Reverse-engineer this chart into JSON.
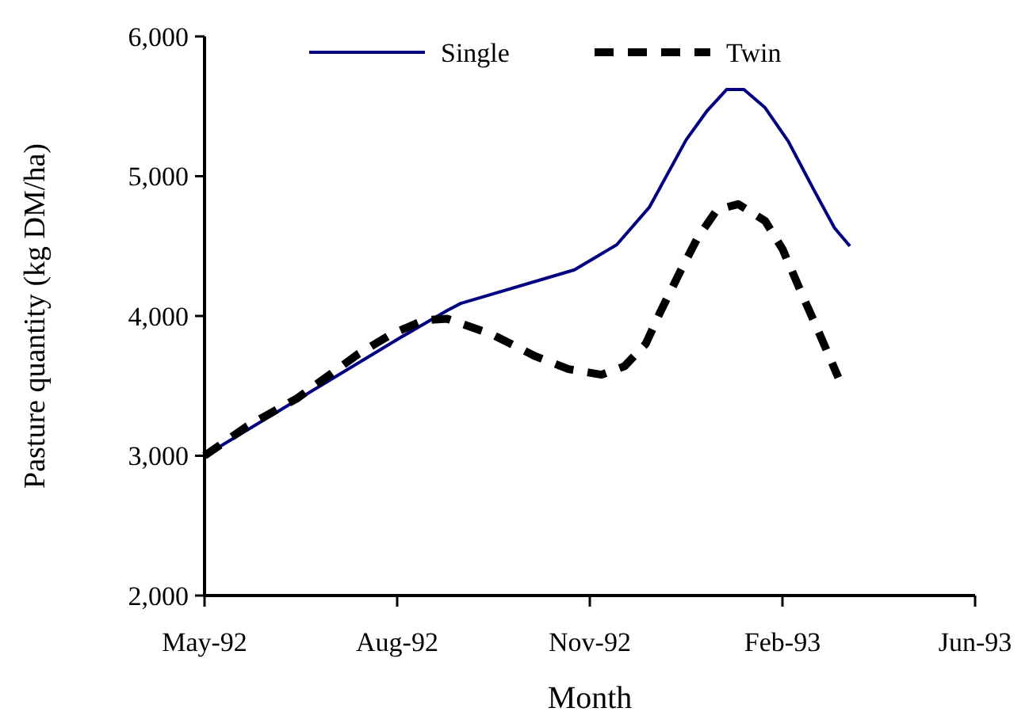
{
  "chart_data": {
    "type": "line",
    "xlabel": "Month",
    "ylabel": "Pasture quantity (kg DM/ha)",
    "xlim": [
      "1992-05-01",
      "1993-06-05"
    ],
    "xticks": [
      {
        "value": "1992-05-01",
        "label": "May-92"
      },
      {
        "value": "1992-08-09",
        "label": "Aug-92"
      },
      {
        "value": "1992-11-17",
        "label": "Nov-92"
      },
      {
        "value": "1993-02-25",
        "label": "Feb-93"
      },
      {
        "value": "1993-06-05",
        "label": "Jun-93"
      }
    ],
    "ylim": [
      2000,
      6000
    ],
    "yticks": [
      {
        "value": 2000,
        "label": "2,000"
      },
      {
        "value": 3000,
        "label": "3,000"
      },
      {
        "value": 4000,
        "label": "4,000"
      },
      {
        "value": 5000,
        "label": "5,000"
      },
      {
        "value": 6000,
        "label": "6,000"
      }
    ],
    "legend": "top",
    "grid": false,
    "marker": "none",
    "series": [
      {
        "name": "Single",
        "color": "#000080",
        "line_style": "solid",
        "x": [
          "1992-05-01",
          "1992-08-10",
          "1992-09-04",
          "1992-09-11",
          "1992-11-09",
          "1992-12-01",
          "1992-12-18",
          "1993-01-06",
          "1993-01-17",
          "1993-01-27",
          "1993-02-05",
          "1993-02-16",
          "1993-02-28",
          "1993-03-13",
          "1993-03-24",
          "1993-04-01"
        ],
        "values": [
          3000,
          3840,
          4040,
          4090,
          4330,
          4510,
          4780,
          5260,
          5470,
          5620,
          5620,
          5490,
          5250,
          4910,
          4630,
          4500
        ]
      },
      {
        "name": "Twin",
        "color": "#000000",
        "line_style": "dashed",
        "x": [
          "1992-05-01",
          "1992-05-23",
          "1992-06-18",
          "1992-07-20",
          "1992-08-06",
          "1992-08-23",
          "1992-09-04",
          "1992-09-27",
          "1992-10-20",
          "1992-11-06",
          "1992-11-23",
          "1992-12-05",
          "1992-12-16",
          "1992-12-24",
          "1993-01-03",
          "1993-01-12",
          "1993-01-22",
          "1993-02-02",
          "1993-02-16",
          "1993-02-25",
          "1993-03-07",
          "1993-03-16",
          "1993-03-26"
        ],
        "values": [
          3000,
          3210,
          3410,
          3730,
          3870,
          3970,
          3980,
          3870,
          3710,
          3620,
          3580,
          3640,
          3800,
          4040,
          4320,
          4560,
          4760,
          4800,
          4680,
          4480,
          4160,
          3880,
          3560
        ]
      }
    ]
  }
}
